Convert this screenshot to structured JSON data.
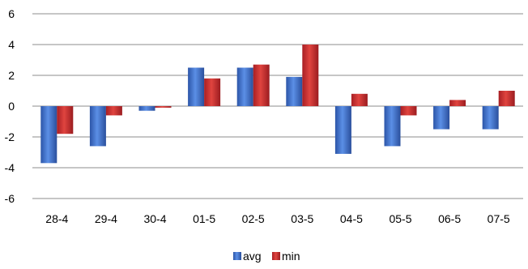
{
  "chart_data": {
    "type": "bar",
    "categories": [
      "28-4",
      "29-4",
      "30-4",
      "01-5",
      "02-5",
      "03-5",
      "04-5",
      "05-5",
      "06-5",
      "07-5"
    ],
    "series": [
      {
        "name": "avg",
        "values": [
          -3.7,
          -2.6,
          -0.3,
          2.5,
          2.5,
          1.9,
          -3.1,
          -2.6,
          -1.5,
          -1.5
        ]
      },
      {
        "name": "min",
        "values": [
          -1.8,
          -0.6,
          -0.1,
          1.8,
          2.7,
          4.0,
          0.8,
          -0.6,
          0.4,
          1.0
        ]
      }
    ],
    "ylim": [
      -6,
      6
    ],
    "yticks": [
      "-6",
      "-4",
      "-2",
      "0",
      "2",
      "4",
      "6"
    ],
    "grid": true,
    "legend_position": "bottom",
    "colors": {
      "avg": "#3f6fc4",
      "min": "#c0272d",
      "grid": "#8c8c8c"
    }
  }
}
